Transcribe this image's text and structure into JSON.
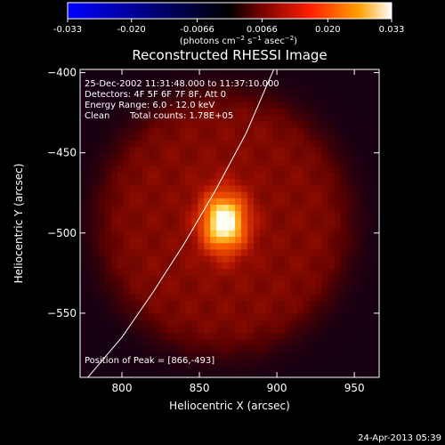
{
  "colorbar": {
    "ticks": [
      "-0.033",
      "-0.020",
      "-0.0066",
      "0.0066",
      "0.020",
      "0.033"
    ],
    "tick_values": [
      -0.033,
      -0.02,
      -0.0066,
      0.0066,
      0.02,
      0.033
    ],
    "range": [
      -0.033,
      0.033
    ],
    "colors": [
      "#0000ff",
      "#000000",
      "#7a0000",
      "#ff2000",
      "#ffa000",
      "#ffffff"
    ]
  },
  "chart_data": {
    "type": "heatmap",
    "title": "Reconstructed RHESSI Image",
    "xlabel": "Heliocentric X (arcsec)",
    "ylabel": "Heliocentric Y (arcsec)",
    "xlim": [
      773,
      966
    ],
    "ylim": [
      -590,
      -398
    ],
    "x_ticks": [
      800,
      850,
      900,
      950
    ],
    "y_ticks": [
      -400,
      -450,
      -500,
      -550
    ],
    "peak": {
      "x": 866,
      "y": -493
    },
    "source_sigma_arcsec": [
      11,
      14
    ],
    "diffuse_radius_arcsec": 80,
    "limb": [
      [
        778,
        -590
      ],
      [
        800,
        -565
      ],
      [
        820,
        -537
      ],
      [
        840,
        -507
      ],
      [
        860,
        -474
      ],
      [
        880,
        -438
      ],
      [
        898,
        -398
      ]
    ]
  },
  "annotations": {
    "time_range": "25-Dec-2002 11:31:48.000 to 11:37:10.000",
    "detectors": "Detectors: 4F 5F 6F 7F 8F, Att 0",
    "energy": "Energy Range: 6.0 - 12.0 keV",
    "clean": "Clean",
    "total_counts": "Total counts: 1.78E+05",
    "peak_label": "Position of Peak = [866,-493]"
  },
  "footer": {
    "date": "24-Apr-2013 05:39"
  }
}
